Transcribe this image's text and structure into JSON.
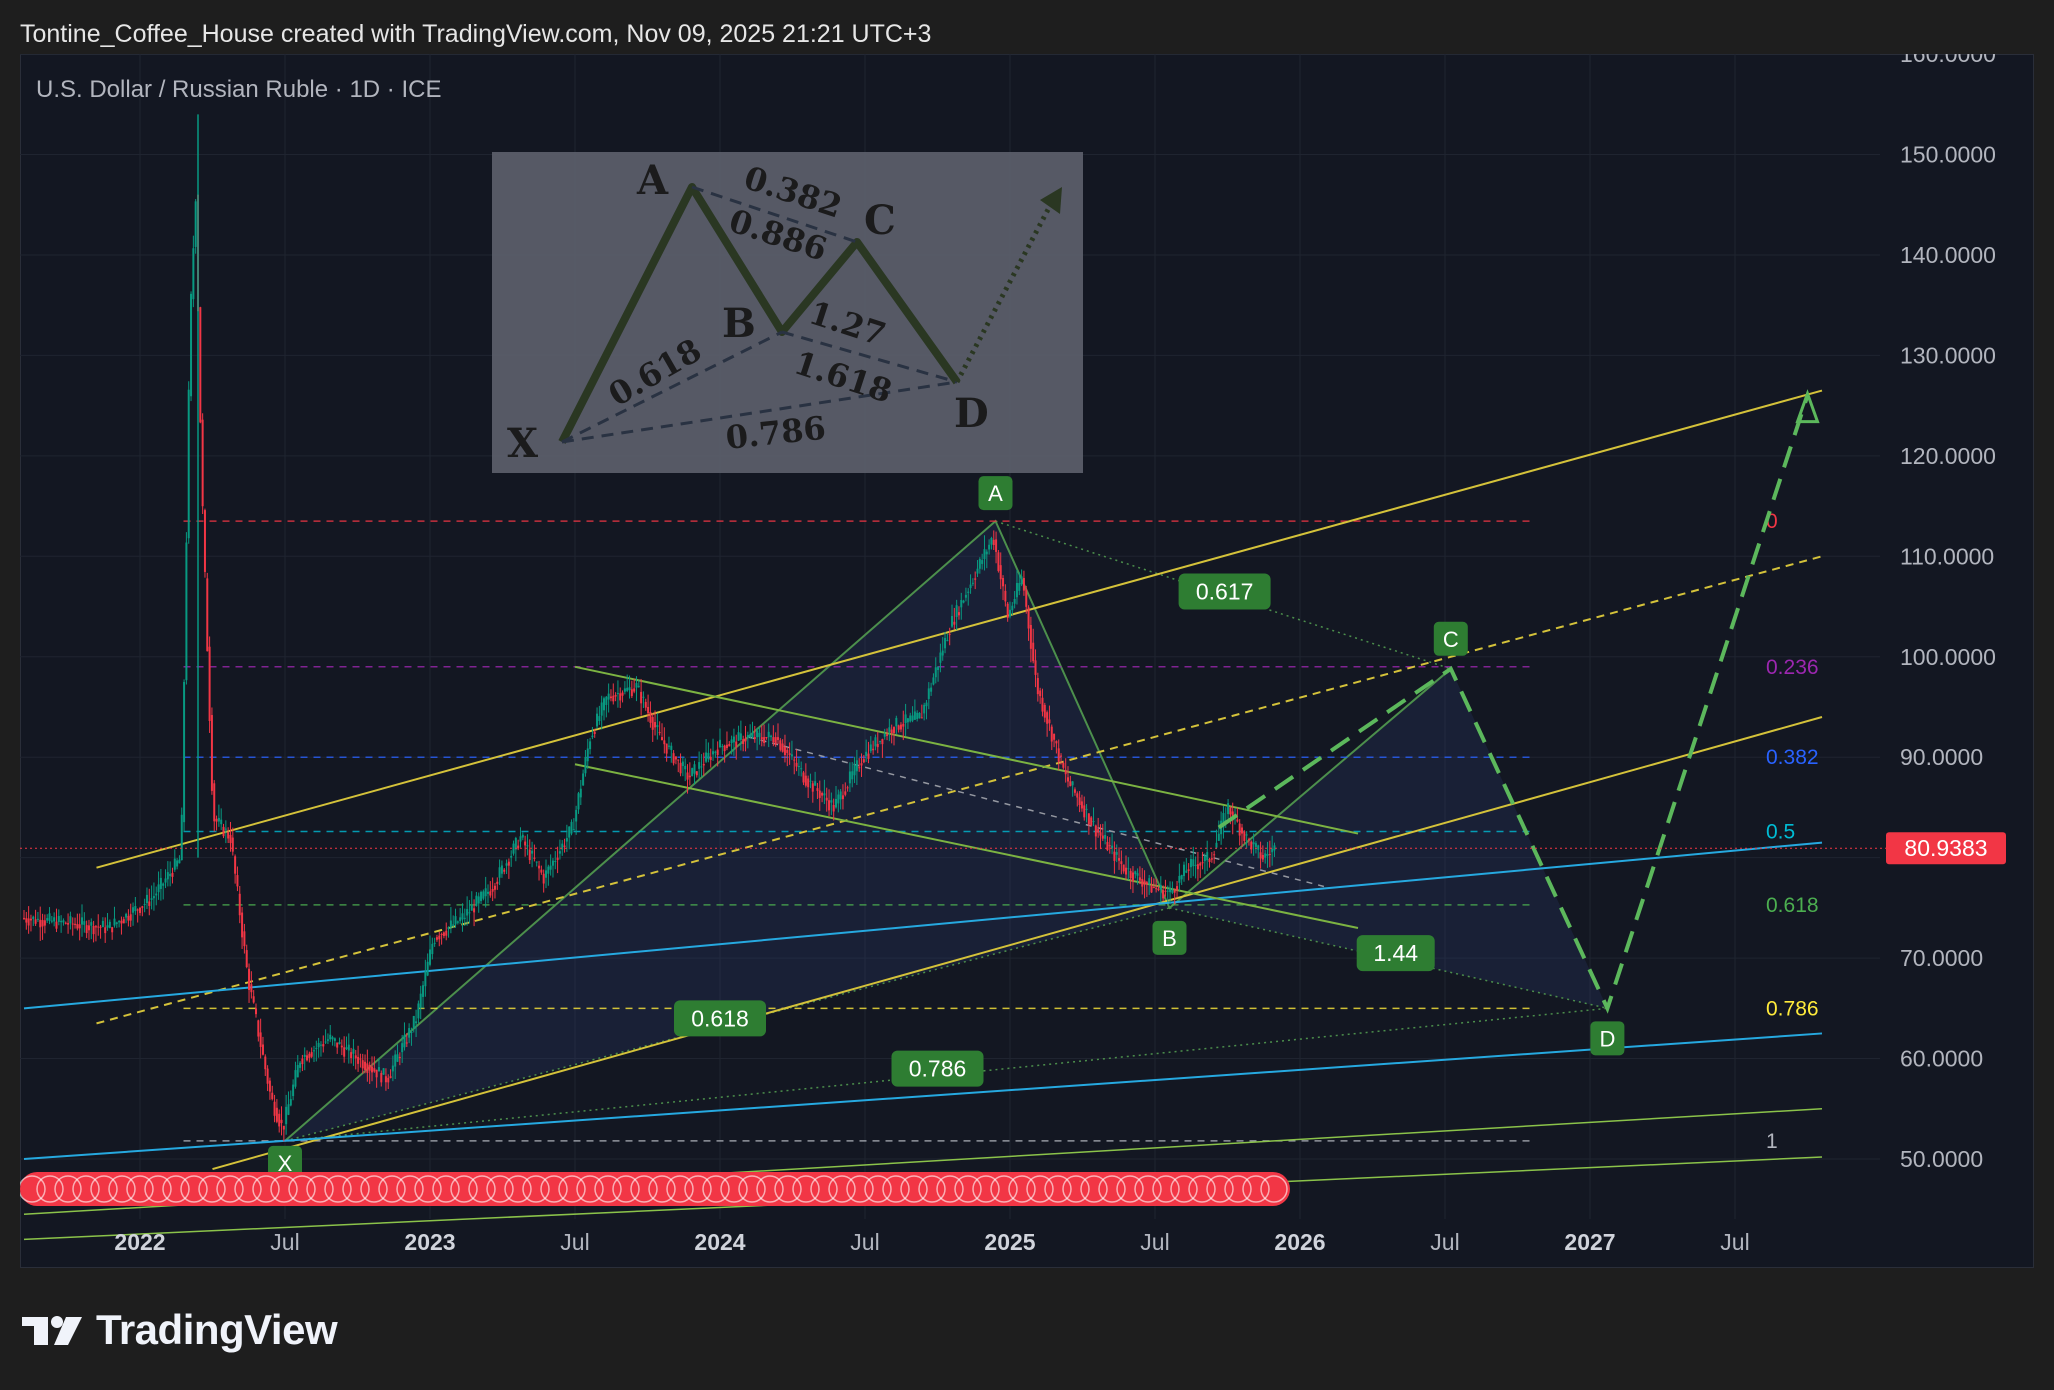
{
  "header": "Tontine_Coffee_House created with TradingView.com, Nov 09, 2025 21:21 UTC+3",
  "symbol": "U.S. Dollar / Russian Ruble · 1D · ICE",
  "logo_text": "TradingView",
  "chart_data": {
    "type": "candlestick",
    "y_axis": {
      "ticks": [
        "150.0000",
        "140.0000",
        "130.0000",
        "120.0000",
        "110.0000",
        "100.0000",
        "90.0000",
        "70.0000",
        "60.0000",
        "50.0000"
      ],
      "top_clipped_tick": "160.0000",
      "ylim": [
        45,
        160
      ]
    },
    "x_axis": {
      "ticks": [
        {
          "label": "2022",
          "year": true
        },
        {
          "label": "Jul",
          "year": false
        },
        {
          "label": "2023",
          "year": true
        },
        {
          "label": "Jul",
          "year": false
        },
        {
          "label": "2024",
          "year": true
        },
        {
          "label": "Jul",
          "year": false
        },
        {
          "label": "2025",
          "year": true
        },
        {
          "label": "Jul",
          "year": false
        },
        {
          "label": "2026",
          "year": true
        },
        {
          "label": "Jul",
          "year": false
        },
        {
          "label": "2027",
          "year": true
        },
        {
          "label": "Jul",
          "year": false
        }
      ]
    },
    "last_price": "80.9383",
    "last_price_color": "#f23645",
    "fib_levels": [
      {
        "label": "0",
        "price": 113.5,
        "color": "#f23645"
      },
      {
        "label": "0.236",
        "price": 99.0,
        "color": "#9c27b0"
      },
      {
        "label": "0.382",
        "price": 90.0,
        "color": "#2962ff"
      },
      {
        "label": "0.5",
        "price": 82.6,
        "color": "#00bcd4"
      },
      {
        "label": "0.618",
        "price": 75.3,
        "color": "#4caf50"
      },
      {
        "label": "0.786",
        "price": 65.0,
        "color": "#ffeb3b"
      },
      {
        "label": "1",
        "price": 51.8,
        "color": "#b2b5be"
      }
    ],
    "pattern_points": [
      "X",
      "A",
      "B",
      "C",
      "D"
    ],
    "pattern_ratios": [
      "0.617",
      "1.44",
      "0.618",
      "0.786"
    ],
    "colors": {
      "up": "#089981",
      "down": "#f23645",
      "pattern": "#4c8f4c",
      "channel": "#d4c23a",
      "trend": "#26a9e0",
      "green_line": "#8bc34a"
    }
  },
  "inset": {
    "points": [
      "A",
      "B",
      "C",
      "D",
      "X"
    ],
    "ratios": [
      "0.382",
      "0.886",
      "1.27",
      "1.618",
      "0.618",
      "0.786"
    ]
  }
}
